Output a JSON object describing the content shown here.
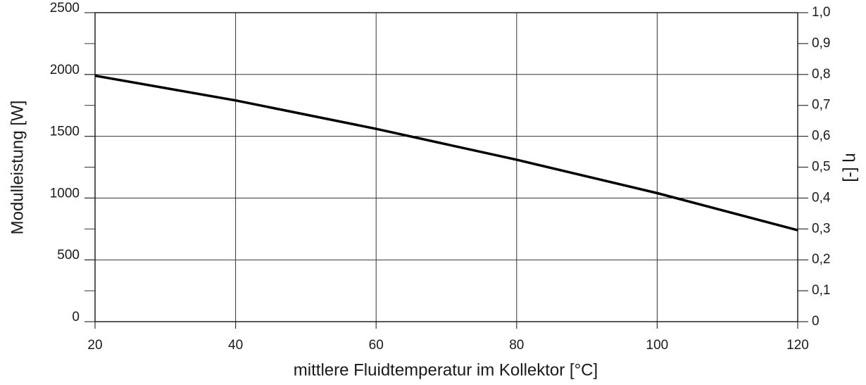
{
  "chart_data": {
    "type": "line",
    "xlabel": "mittlere Fluidtemperatur im Kollektor [°C]",
    "ylabel": "Modulleistung [W]",
    "y2label": "η [-]",
    "x": [
      20,
      40,
      60,
      80,
      100,
      120
    ],
    "series": [
      {
        "name": "Modulleistung",
        "color": "#000000",
        "values": [
          1990,
          1790,
          1560,
          1310,
          1040,
          740
        ]
      }
    ],
    "xlim": [
      20,
      120
    ],
    "xticks": [
      20,
      40,
      60,
      80,
      100,
      120
    ],
    "ylim": [
      0,
      2500
    ],
    "yticks": [
      0,
      500,
      1000,
      1500,
      2000,
      2500
    ],
    "y2lim": [
      0,
      1
    ],
    "y2ticks": [
      0,
      {
        "value": 0.1,
        "label": "0,1"
      },
      {
        "value": 0.2,
        "label": "0,2"
      },
      {
        "value": 0.3,
        "label": "0,3"
      },
      {
        "value": 0.4,
        "label": "0,4"
      },
      {
        "value": 0.5,
        "label": "0,5"
      },
      {
        "value": 0.6,
        "label": "0,6"
      },
      {
        "value": 0.7,
        "label": "0,7"
      },
      {
        "value": 0.8,
        "label": "0,8"
      },
      {
        "value": 0.9,
        "label": "0,9"
      },
      {
        "value": 1,
        "label": "1,0"
      }
    ],
    "grid": true
  }
}
